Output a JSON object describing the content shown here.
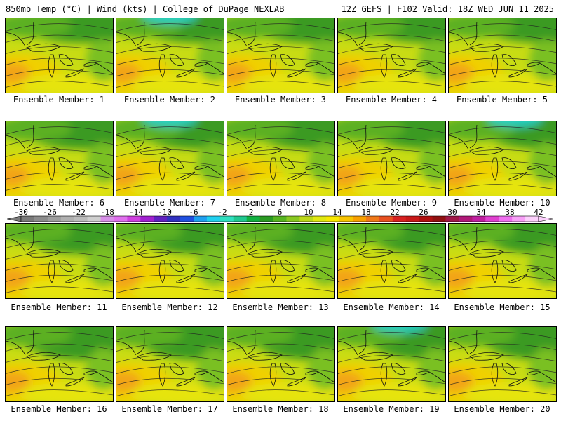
{
  "header": {
    "left": "850mb Temp (°C) | Wind (kts) | College of DuPage NEXLAB",
    "right": "12Z GEFS | F102 Valid: 18Z WED JUN 11 2025"
  },
  "members": [
    {
      "label": "Ensemble Member: 1"
    },
    {
      "label": "Ensemble Member: 2"
    },
    {
      "label": "Ensemble Member: 3"
    },
    {
      "label": "Ensemble Member: 4"
    },
    {
      "label": "Ensemble Member: 5"
    },
    {
      "label": "Ensemble Member: 6"
    },
    {
      "label": "Ensemble Member: 7"
    },
    {
      "label": "Ensemble Member: 8"
    },
    {
      "label": "Ensemble Member: 9"
    },
    {
      "label": "Ensemble Member: 10"
    },
    {
      "label": "Ensemble Member: 11"
    },
    {
      "label": "Ensemble Member: 12"
    },
    {
      "label": "Ensemble Member: 13"
    },
    {
      "label": "Ensemble Member: 14"
    },
    {
      "label": "Ensemble Member: 15"
    },
    {
      "label": "Ensemble Member: 16"
    },
    {
      "label": "Ensemble Member: 17"
    },
    {
      "label": "Ensemble Member: 18"
    },
    {
      "label": "Ensemble Member: 19"
    },
    {
      "label": "Ensemble Member: 20"
    }
  ],
  "colorbar": {
    "ticks": [
      "-30",
      "-26",
      "-22",
      "-18",
      "-14",
      "-10",
      "-6",
      "-2",
      "2",
      "6",
      "10",
      "14",
      "18",
      "22",
      "26",
      "30",
      "34",
      "38",
      "42"
    ],
    "colors": [
      "#7a7a7a",
      "#8c8c8c",
      "#9e9e9e",
      "#b0b0b0",
      "#bcbcbc",
      "#cfcfcf",
      "#d890e8",
      "#e070ee",
      "#d040e0",
      "#a020d0",
      "#6020c0",
      "#3030c0",
      "#2050e0",
      "#1fa0f0",
      "#20d0f0",
      "#30e0c0",
      "#20c890",
      "#10b040",
      "#2a9a22",
      "#56b420",
      "#88c820",
      "#bcd818",
      "#e0e810",
      "#f8e800",
      "#f8c400",
      "#f8a000",
      "#f07818",
      "#e85020",
      "#d82020",
      "#c81818",
      "#b01010",
      "#901010",
      "#a01848",
      "#b01878",
      "#c020a0",
      "#e040d0",
      "#f070f0",
      "#f8a0f8",
      "#fcd0fc"
    ]
  }
}
